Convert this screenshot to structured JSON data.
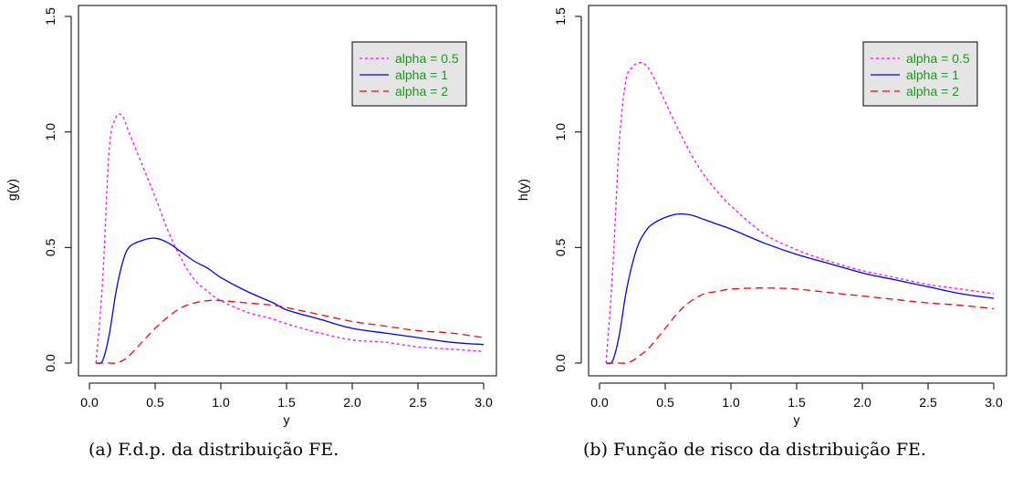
{
  "chart_data": [
    {
      "type": "line",
      "title": "",
      "caption": "(a) F.d.p. da distribuição FE.",
      "xlabel": "y",
      "ylabel": "g(y)",
      "xlim": [
        0,
        3
      ],
      "ylim": [
        0,
        1.5
      ],
      "xticks": [
        "0.0",
        "0.5",
        "1.0",
        "1.5",
        "2.0",
        "2.5",
        "3.0"
      ],
      "yticks": [
        "0.0",
        "0.5",
        "1.0",
        "1.5"
      ],
      "grid": false,
      "legend_position": "top-right",
      "x": [
        0.05,
        0.1,
        0.15,
        0.2,
        0.25,
        0.3,
        0.4,
        0.5,
        0.6,
        0.7,
        0.8,
        0.9,
        1.0,
        1.2,
        1.4,
        1.5,
        1.75,
        2.0,
        2.25,
        2.5,
        2.75,
        3.0
      ],
      "series": [
        {
          "name": "alpha = 0.5",
          "color": "#ff00ff",
          "dash": "dotted",
          "values": [
            0.0,
            0.35,
            0.92,
            1.06,
            1.07,
            1.0,
            0.86,
            0.72,
            0.57,
            0.45,
            0.36,
            0.31,
            0.27,
            0.22,
            0.19,
            0.17,
            0.13,
            0.1,
            0.09,
            0.07,
            0.06,
            0.05
          ]
        },
        {
          "name": "alpha = 1",
          "color": "#0000ff",
          "dash": "solid",
          "values": [
            0.0,
            0.01,
            0.12,
            0.3,
            0.43,
            0.5,
            0.53,
            0.54,
            0.52,
            0.48,
            0.44,
            0.41,
            0.37,
            0.31,
            0.26,
            0.23,
            0.19,
            0.15,
            0.13,
            0.11,
            0.09,
            0.08
          ]
        },
        {
          "name": "alpha = 2",
          "color": "#ff0000",
          "dash": "dashed",
          "values": [
            0.0,
            0.0,
            0.0,
            0.0,
            0.01,
            0.03,
            0.09,
            0.15,
            0.2,
            0.24,
            0.26,
            0.27,
            0.27,
            0.26,
            0.25,
            0.24,
            0.21,
            0.18,
            0.16,
            0.14,
            0.13,
            0.11
          ]
        }
      ]
    },
    {
      "type": "line",
      "title": "",
      "caption": "(b) Função de risco da distribuição FE.",
      "xlabel": "y",
      "ylabel": "h(y)",
      "xlim": [
        0,
        3
      ],
      "ylim": [
        0,
        1.5
      ],
      "xticks": [
        "0.0",
        "0.5",
        "1.0",
        "1.5",
        "2.0",
        "2.5",
        "3.0"
      ],
      "yticks": [
        "0.0",
        "0.5",
        "1.0",
        "1.5"
      ],
      "grid": false,
      "legend_position": "top-right",
      "x": [
        0.05,
        0.1,
        0.15,
        0.2,
        0.25,
        0.3,
        0.35,
        0.4,
        0.5,
        0.6,
        0.7,
        0.8,
        0.9,
        1.0,
        1.25,
        1.5,
        1.75,
        2.0,
        2.25,
        2.5,
        2.75,
        3.0
      ],
      "series": [
        {
          "name": "alpha = 0.5",
          "color": "#ff00ff",
          "dash": "dotted",
          "values": [
            0.0,
            0.4,
            0.95,
            1.22,
            1.28,
            1.3,
            1.29,
            1.25,
            1.13,
            1.01,
            0.9,
            0.81,
            0.74,
            0.68,
            0.56,
            0.49,
            0.44,
            0.4,
            0.37,
            0.34,
            0.32,
            0.3
          ]
        },
        {
          "name": "alpha = 1",
          "color": "#0000ff",
          "dash": "solid",
          "values": [
            0.0,
            0.01,
            0.12,
            0.3,
            0.43,
            0.52,
            0.57,
            0.6,
            0.63,
            0.645,
            0.64,
            0.62,
            0.6,
            0.58,
            0.52,
            0.47,
            0.43,
            0.39,
            0.36,
            0.33,
            0.3,
            0.28
          ]
        },
        {
          "name": "alpha = 2",
          "color": "#ff0000",
          "dash": "dashed",
          "values": [
            0.0,
            0.0,
            0.0,
            0.0,
            0.01,
            0.03,
            0.05,
            0.08,
            0.15,
            0.22,
            0.27,
            0.3,
            0.31,
            0.32,
            0.325,
            0.32,
            0.305,
            0.29,
            0.275,
            0.26,
            0.25,
            0.235
          ]
        }
      ]
    }
  ]
}
